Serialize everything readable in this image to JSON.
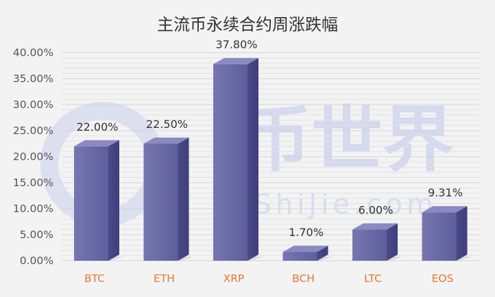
{
  "chart_data": {
    "type": "bar",
    "title": "主流币永续合约周涨跌幅",
    "xlabel": "",
    "ylabel": "",
    "categories": [
      "BTC",
      "ETH",
      "XRP",
      "BCH",
      "LTC",
      "EOS"
    ],
    "values": [
      22.0,
      22.5,
      37.8,
      1.7,
      6.0,
      9.31
    ],
    "data_labels": [
      "22.00%",
      "22.50%",
      "37.80%",
      "1.70%",
      "6.00%",
      "9.31%"
    ],
    "ylim": [
      0,
      40
    ],
    "yticks": [
      "0.00%",
      "5.00%",
      "10.00%",
      "15.00%",
      "20.00%",
      "25.00%",
      "30.00%",
      "35.00%",
      "40.00%"
    ],
    "grid": true,
    "legend": "none",
    "style": "3d-bar"
  },
  "watermark": {
    "text": "币世界",
    "subtext": "BiShiJie.com",
    "color": "#3b55d9"
  },
  "colors": {
    "bar_front": "#6c6ca8",
    "bar_side": "#4d4d8c",
    "bar_top": "#8a8ac0",
    "category_label": "#e8772e",
    "grid": "#d5d5d5"
  }
}
